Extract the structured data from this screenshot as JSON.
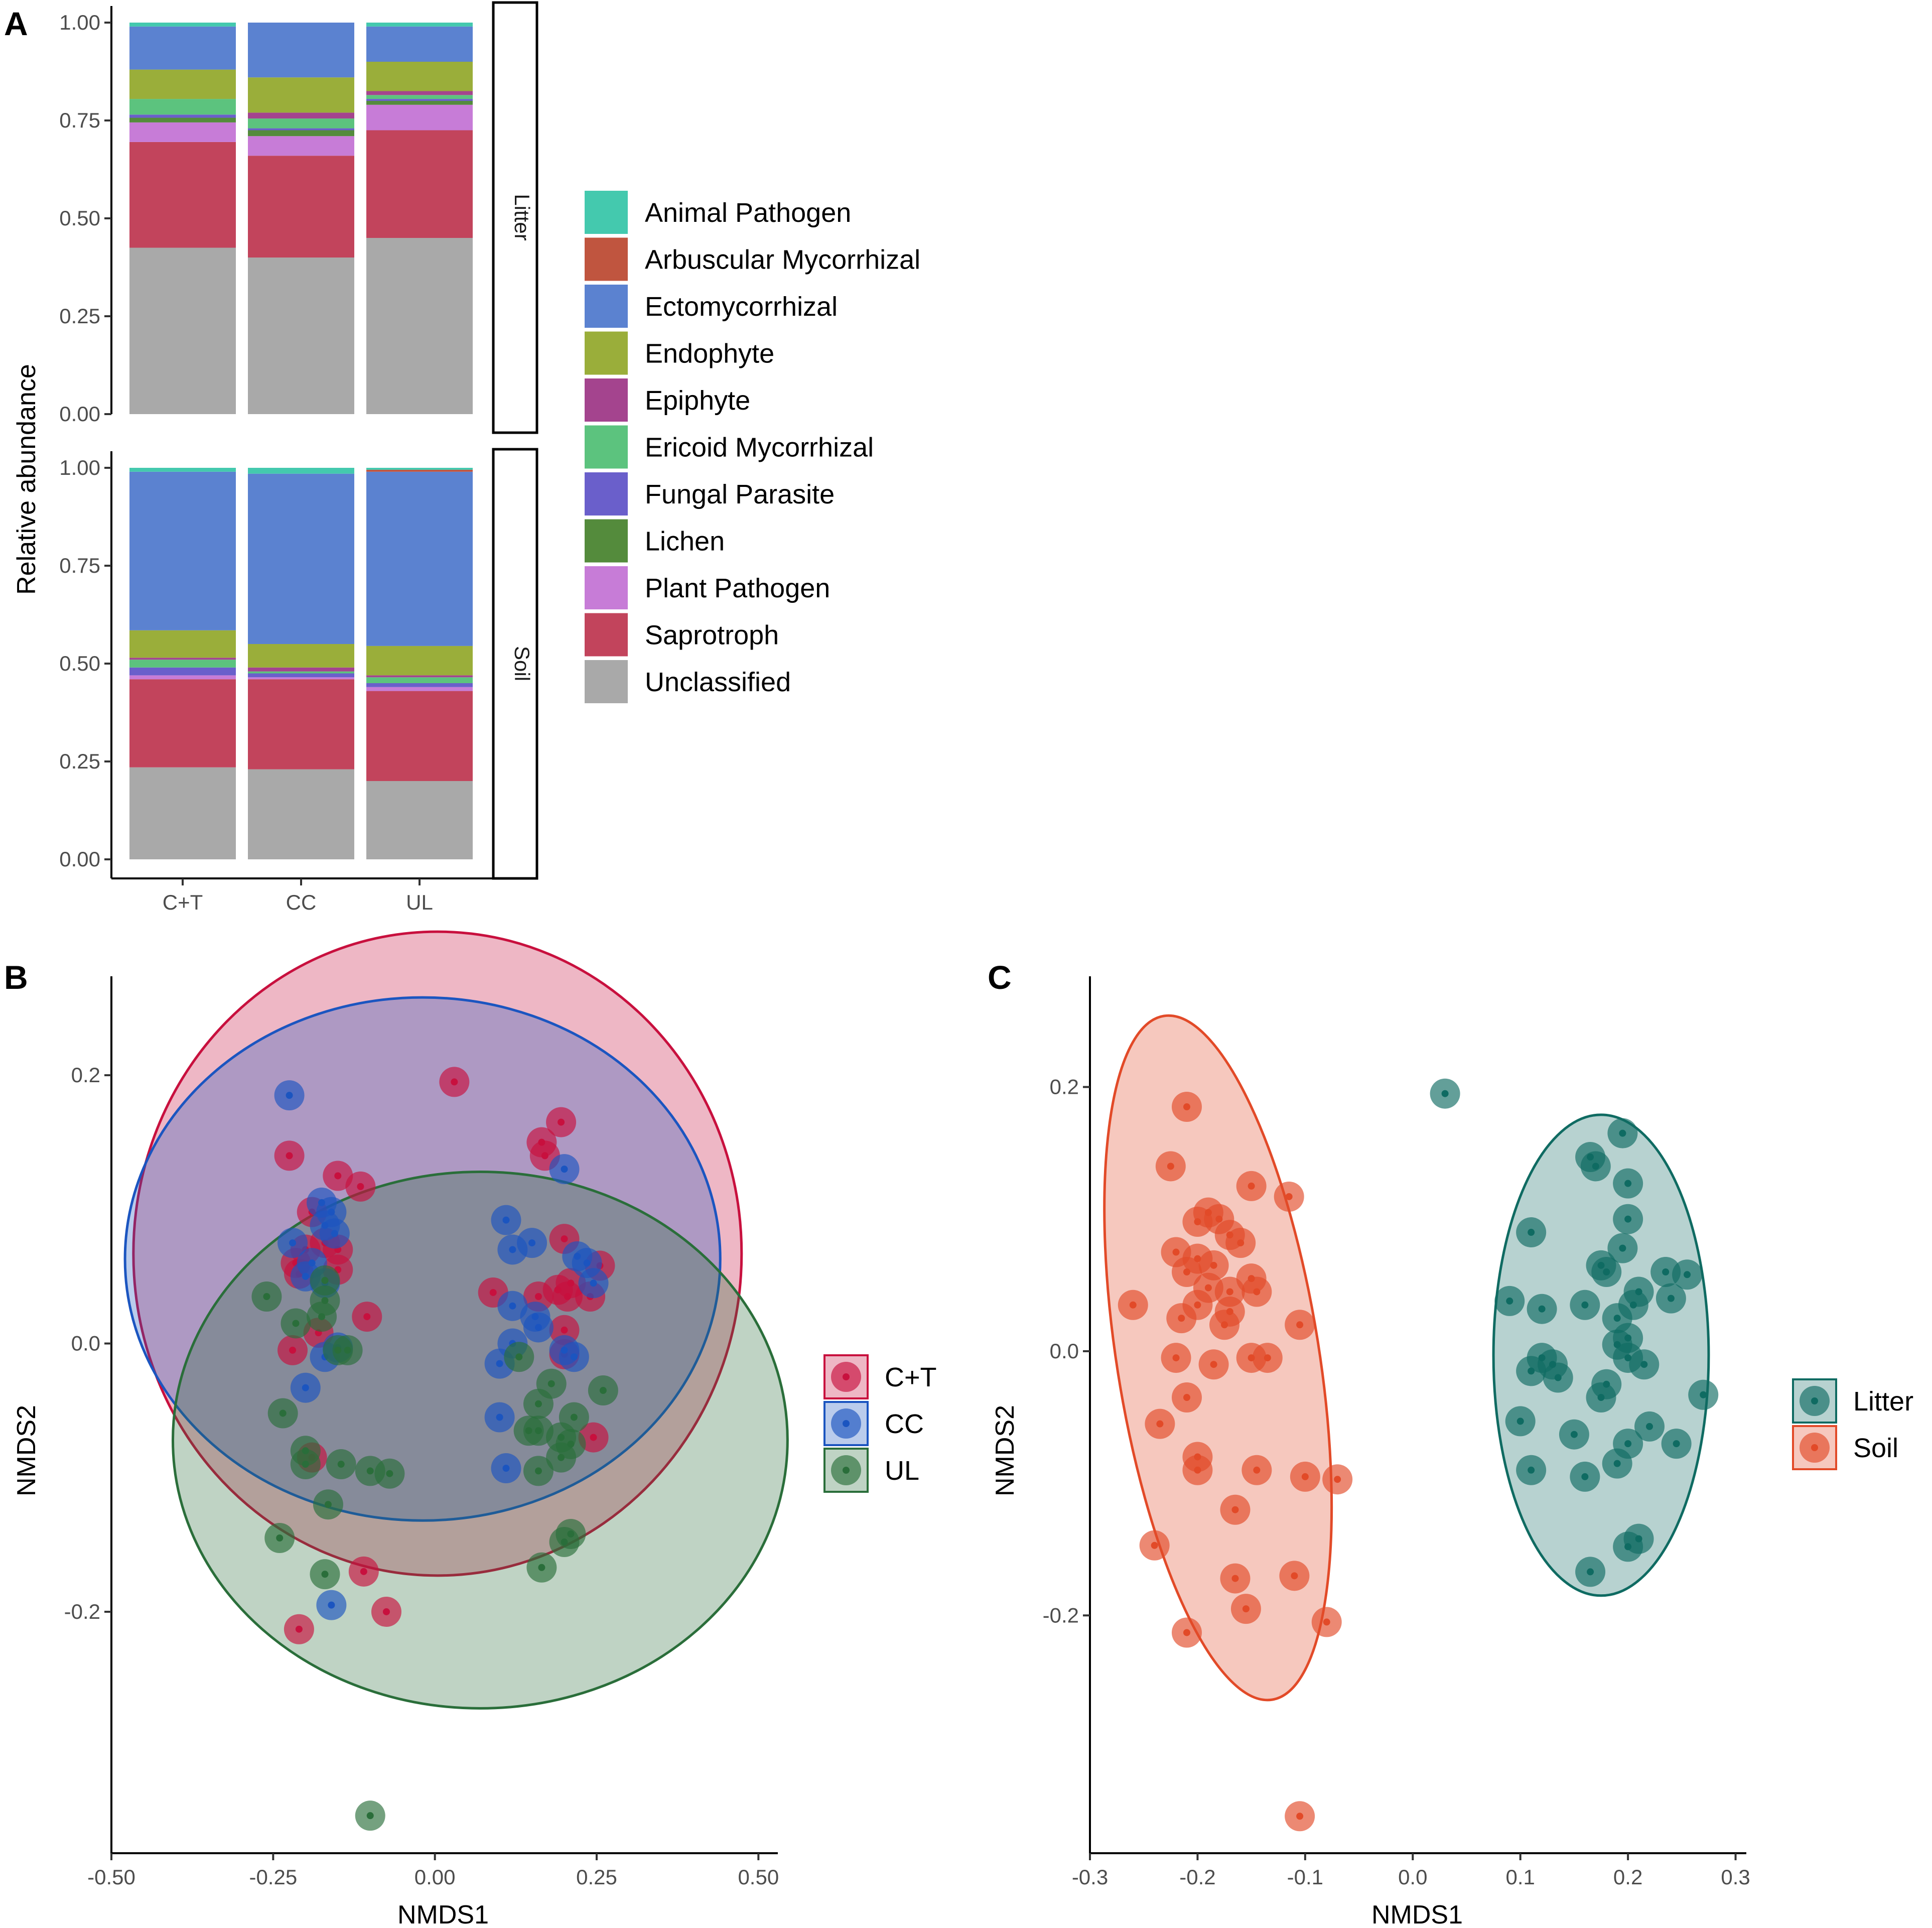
{
  "panels": {
    "a_tag": "A",
    "b_tag": "B",
    "c_tag": "C"
  },
  "chart_data": [
    {
      "id": "A",
      "type": "bar",
      "stacked": true,
      "title": "",
      "xlabel": "",
      "ylabel": "Relative abundance",
      "ylim": [
        0,
        1
      ],
      "yticks": [
        "0.00",
        "0.25",
        "0.50",
        "0.75",
        "1.00"
      ],
      "categories": [
        "C+T",
        "CC",
        "UL"
      ],
      "facets": [
        "Litter",
        "Soil"
      ],
      "legend": {
        "position": "right"
      },
      "guilds": [
        {
          "name": "Unclassified",
          "color": "#a9a9a9"
        },
        {
          "name": "Saprotroph",
          "color": "#c2445c"
        },
        {
          "name": "Plant Pathogen",
          "color": "#c77cd7"
        },
        {
          "name": "Lichen",
          "color": "#548b3c"
        },
        {
          "name": "Fungal Parasite",
          "color": "#6a5fcb"
        },
        {
          "name": "Ericoid Mycorrhizal",
          "color": "#5cc37e"
        },
        {
          "name": "Epiphyte",
          "color": "#a4448e"
        },
        {
          "name": "Endophyte",
          "color": "#9aae3a"
        },
        {
          "name": "Ectomycorrhizal",
          "color": "#5b82d0"
        },
        {
          "name": "Arbuscular Mycorrhizal",
          "color": "#c0553f"
        },
        {
          "name": "Animal Pathogen",
          "color": "#44c9ae"
        }
      ],
      "legend_order": [
        "Animal Pathogen",
        "Arbuscular Mycorrhizal",
        "Ectomycorrhizal",
        "Endophyte",
        "Epiphyte",
        "Ericoid Mycorrhizal",
        "Fungal Parasite",
        "Lichen",
        "Plant Pathogen",
        "Saprotroph",
        "Unclassified"
      ],
      "data": {
        "Litter": {
          "C+T": [
            0.425,
            0.27,
            0.05,
            0.012,
            0.008,
            0.04,
            0.0,
            0.075,
            0.11,
            0.0,
            0.01
          ],
          "CC": [
            0.4,
            0.26,
            0.05,
            0.015,
            0.005,
            0.025,
            0.015,
            0.09,
            0.14,
            0.0,
            0.0
          ],
          "UL": [
            0.45,
            0.275,
            0.065,
            0.01,
            0.005,
            0.01,
            0.01,
            0.075,
            0.09,
            0.0,
            0.01
          ]
        },
        "Soil": {
          "C+T": [
            0.235,
            0.225,
            0.01,
            0.0,
            0.02,
            0.02,
            0.005,
            0.07,
            0.405,
            0.0,
            0.01
          ],
          "CC": [
            0.23,
            0.23,
            0.005,
            0.0,
            0.01,
            0.005,
            0.01,
            0.06,
            0.435,
            0.0,
            0.015
          ],
          "UL": [
            0.2,
            0.23,
            0.01,
            0.0,
            0.01,
            0.015,
            0.005,
            0.075,
            0.445,
            0.005,
            0.005
          ]
        }
      }
    },
    {
      "id": "B",
      "type": "scatter",
      "title": "",
      "xlabel": "NMDS1",
      "ylabel": "NMDS2",
      "xlim": [
        -0.5,
        0.53
      ],
      "ylim": [
        -0.38,
        0.27
      ],
      "xticks": [
        "-0.50",
        "-0.25",
        "0.00",
        "0.25",
        "0.50"
      ],
      "yticks": [
        "-0.2",
        "0.0",
        "0.2"
      ],
      "legend": {
        "position": "right"
      },
      "ellipses": [
        {
          "group": "C+T",
          "cx": 0.004,
          "cy": 0.067,
          "rx": 0.47,
          "ry": 0.24
        },
        {
          "group": "CC",
          "cx": -0.019,
          "cy": 0.063,
          "rx": 0.46,
          "ry": 0.195
        },
        {
          "group": "UL",
          "cx": 0.07,
          "cy": -0.072,
          "rx": 0.475,
          "ry": 0.2
        }
      ],
      "series": [
        {
          "name": "C+T",
          "color": "#c8103e",
          "points": [
            [
              0.03,
              0.195
            ],
            [
              0.195,
              0.165
            ],
            [
              -0.225,
              0.14
            ],
            [
              -0.15,
              0.125
            ],
            [
              -0.115,
              0.117
            ],
            [
              0.165,
              0.15
            ],
            [
              0.17,
              0.14
            ],
            [
              -0.19,
              0.098
            ],
            [
              -0.2,
              0.07
            ],
            [
              -0.215,
              0.06
            ],
            [
              -0.17,
              0.075
            ],
            [
              -0.15,
              0.07
            ],
            [
              0.2,
              0.078
            ],
            [
              0.255,
              0.058
            ],
            [
              0.21,
              0.045
            ],
            [
              0.205,
              0.035
            ],
            [
              0.16,
              0.035
            ],
            [
              0.09,
              0.038
            ],
            [
              -0.21,
              0.052
            ],
            [
              -0.15,
              0.055
            ],
            [
              -0.105,
              0.02
            ],
            [
              0.2,
              0.01
            ],
            [
              0.2,
              -0.008
            ],
            [
              -0.22,
              -0.005
            ],
            [
              -0.18,
              0.008
            ],
            [
              0.245,
              -0.07
            ],
            [
              -0.19,
              -0.085
            ],
            [
              -0.11,
              -0.17
            ],
            [
              -0.075,
              -0.2
            ],
            [
              -0.21,
              -0.213
            ],
            [
              0.19,
              0.04
            ],
            [
              0.24,
              0.035
            ]
          ]
        },
        {
          "name": "CC",
          "color": "#1b55c0",
          "points": [
            [
              -0.225,
              0.185
            ],
            [
              0.2,
              0.13
            ],
            [
              -0.175,
              0.105
            ],
            [
              -0.16,
              0.098
            ],
            [
              -0.17,
              0.088
            ],
            [
              -0.155,
              0.082
            ],
            [
              0.11,
              0.092
            ],
            [
              0.235,
              0.06
            ],
            [
              -0.22,
              0.075
            ],
            [
              0.15,
              0.075
            ],
            [
              0.12,
              0.07
            ],
            [
              0.22,
              0.065
            ],
            [
              0.245,
              0.045
            ],
            [
              -0.2,
              0.05
            ],
            [
              -0.17,
              0.045
            ],
            [
              0.12,
              0.028
            ],
            [
              0.16,
              0.012
            ],
            [
              0.2,
              -0.005
            ],
            [
              0.12,
              0.0
            ],
            [
              0.215,
              -0.01
            ],
            [
              -0.2,
              -0.033
            ],
            [
              -0.17,
              -0.01
            ],
            [
              0.1,
              -0.015
            ],
            [
              0.1,
              -0.055
            ],
            [
              -0.15,
              -0.003
            ],
            [
              0.11,
              -0.093
            ],
            [
              -0.16,
              -0.195
            ],
            [
              0.155,
              0.02
            ],
            [
              -0.19,
              0.06
            ]
          ]
        },
        {
          "name": "UL",
          "color": "#2a6e3a",
          "points": [
            [
              -0.1,
              -0.352
            ],
            [
              -0.26,
              0.035
            ],
            [
              -0.17,
              0.047
            ],
            [
              -0.175,
              0.02
            ],
            [
              -0.215,
              0.015
            ],
            [
              -0.17,
              0.032
            ],
            [
              -0.135,
              -0.005
            ],
            [
              -0.15,
              -0.005
            ],
            [
              0.13,
              -0.01
            ],
            [
              0.18,
              -0.03
            ],
            [
              0.26,
              -0.035
            ],
            [
              -0.235,
              -0.052
            ],
            [
              0.16,
              -0.045
            ],
            [
              0.215,
              -0.055
            ],
            [
              0.16,
              -0.065
            ],
            [
              0.195,
              -0.07
            ],
            [
              0.21,
              -0.075
            ],
            [
              0.145,
              -0.065
            ],
            [
              -0.2,
              -0.08
            ],
            [
              -0.2,
              -0.09
            ],
            [
              0.195,
              -0.085
            ],
            [
              0.16,
              -0.095
            ],
            [
              -0.145,
              -0.09
            ],
            [
              -0.1,
              -0.095
            ],
            [
              -0.07,
              -0.097
            ],
            [
              -0.165,
              -0.12
            ],
            [
              -0.24,
              -0.145
            ],
            [
              -0.17,
              -0.172
            ],
            [
              0.165,
              -0.167
            ],
            [
              0.2,
              -0.148
            ],
            [
              0.21,
              -0.142
            ]
          ]
        }
      ]
    },
    {
      "id": "C",
      "type": "scatter",
      "title": "",
      "xlabel": "NMDS1",
      "ylabel": "NMDS2",
      "xlim": [
        -0.3,
        0.31
      ],
      "ylim": [
        -0.38,
        0.28
      ],
      "xticks": [
        "-0.3",
        "-0.2",
        "-0.1",
        "0.0",
        "0.1",
        "0.2",
        "0.3"
      ],
      "yticks": [
        "-0.2",
        "0.0",
        "0.2"
      ],
      "legend": {
        "position": "right"
      },
      "ellipses": [
        {
          "group": "Soil",
          "cx": -0.181,
          "cy": -0.005,
          "rx": 0.094,
          "ry": 0.262,
          "angle": -9
        },
        {
          "group": "Litter",
          "cx": 0.175,
          "cy": -0.003,
          "rx": 0.1,
          "ry": 0.182
        }
      ],
      "series": [
        {
          "name": "Litter",
          "color": "#0f6b62",
          "points": [
            [
              0.03,
              0.195
            ],
            [
              0.195,
              0.165
            ],
            [
              0.165,
              0.147
            ],
            [
              0.17,
              0.14
            ],
            [
              0.2,
              0.127
            ],
            [
              0.2,
              0.1
            ],
            [
              0.11,
              0.09
            ],
            [
              0.195,
              0.078
            ],
            [
              0.255,
              0.058
            ],
            [
              0.235,
              0.06
            ],
            [
              0.175,
              0.065
            ],
            [
              0.18,
              0.06
            ],
            [
              0.21,
              0.045
            ],
            [
              0.205,
              0.035
            ],
            [
              0.16,
              0.035
            ],
            [
              0.09,
              0.038
            ],
            [
              0.24,
              0.04
            ],
            [
              0.12,
              0.032
            ],
            [
              0.19,
              0.025
            ],
            [
              0.2,
              0.01
            ],
            [
              0.19,
              0.005
            ],
            [
              0.2,
              -0.005
            ],
            [
              0.12,
              -0.005
            ],
            [
              0.215,
              -0.01
            ],
            [
              0.11,
              -0.015
            ],
            [
              0.13,
              -0.01
            ],
            [
              0.18,
              -0.025
            ],
            [
              0.175,
              -0.035
            ],
            [
              0.27,
              -0.033
            ],
            [
              0.1,
              -0.053
            ],
            [
              0.15,
              -0.063
            ],
            [
              0.22,
              -0.057
            ],
            [
              0.2,
              -0.07
            ],
            [
              0.245,
              -0.07
            ],
            [
              0.19,
              -0.085
            ],
            [
              0.11,
              -0.09
            ],
            [
              0.16,
              -0.095
            ],
            [
              0.2,
              -0.148
            ],
            [
              0.21,
              -0.142
            ],
            [
              0.165,
              -0.167
            ],
            [
              0.135,
              -0.02
            ]
          ]
        },
        {
          "name": "Soil",
          "color": "#e24a28",
          "points": [
            [
              -0.21,
              0.185
            ],
            [
              -0.225,
              0.14
            ],
            [
              -0.15,
              0.125
            ],
            [
              -0.115,
              0.117
            ],
            [
              -0.19,
              0.105
            ],
            [
              -0.18,
              0.1
            ],
            [
              -0.2,
              0.098
            ],
            [
              -0.17,
              0.088
            ],
            [
              -0.16,
              0.082
            ],
            [
              -0.22,
              0.075
            ],
            [
              -0.2,
              0.07
            ],
            [
              -0.21,
              0.06
            ],
            [
              -0.15,
              0.055
            ],
            [
              -0.17,
              0.045
            ],
            [
              -0.19,
              0.048
            ],
            [
              -0.26,
              0.035
            ],
            [
              -0.2,
              0.035
            ],
            [
              -0.17,
              0.03
            ],
            [
              -0.215,
              0.025
            ],
            [
              -0.145,
              0.045
            ],
            [
              -0.105,
              0.02
            ],
            [
              -0.175,
              0.02
            ],
            [
              -0.135,
              -0.005
            ],
            [
              -0.15,
              -0.005
            ],
            [
              -0.185,
              -0.01
            ],
            [
              -0.21,
              -0.035
            ],
            [
              -0.235,
              -0.055
            ],
            [
              -0.2,
              -0.08
            ],
            [
              -0.2,
              -0.09
            ],
            [
              -0.145,
              -0.09
            ],
            [
              -0.1,
              -0.095
            ],
            [
              -0.07,
              -0.097
            ],
            [
              -0.165,
              -0.12
            ],
            [
              -0.24,
              -0.147
            ],
            [
              -0.165,
              -0.172
            ],
            [
              -0.11,
              -0.17
            ],
            [
              -0.155,
              -0.195
            ],
            [
              -0.21,
              -0.213
            ],
            [
              -0.08,
              -0.205
            ],
            [
              -0.105,
              -0.352
            ],
            [
              -0.22,
              -0.005
            ],
            [
              -0.185,
              0.065
            ]
          ]
        }
      ]
    }
  ]
}
